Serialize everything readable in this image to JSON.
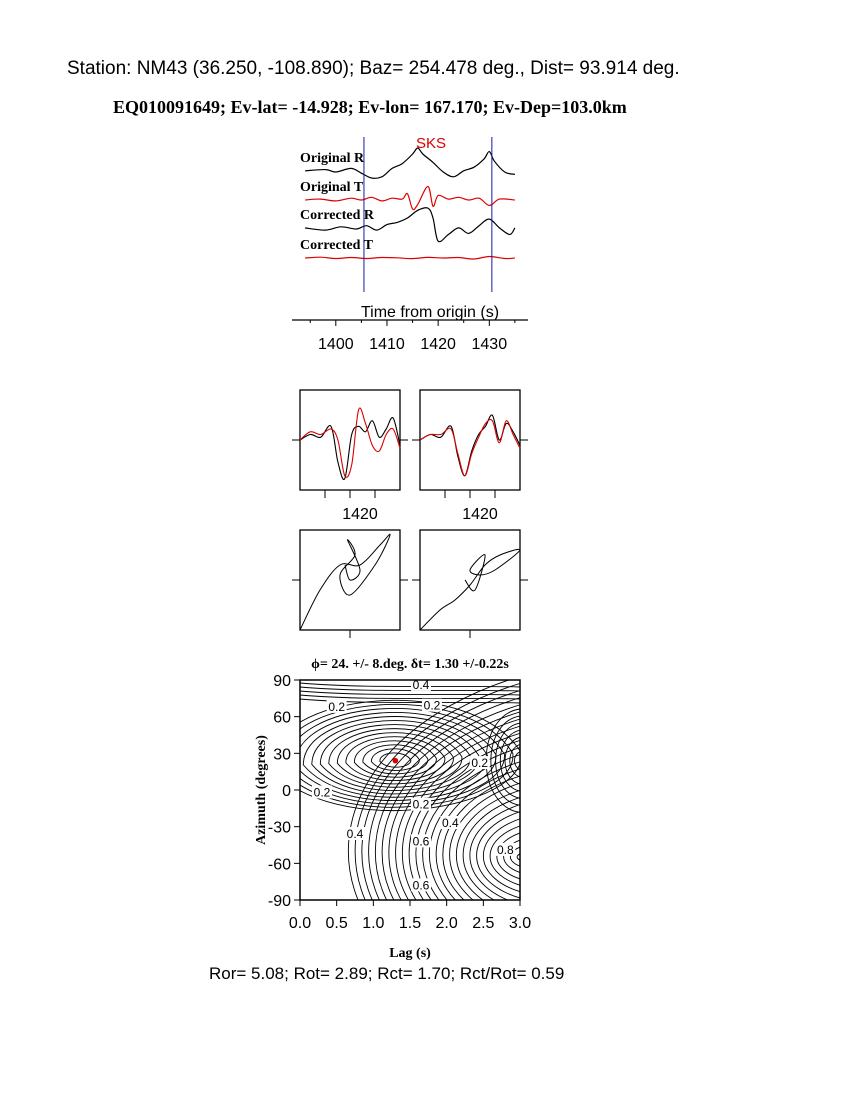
{
  "header": {
    "station_line": "Station: NM43 (36.250, -108.890); Baz=  254.478 deg., Dist=   93.914 deg.",
    "event_line": "EQ010091649; Ev-lat= -14.928; Ev-lon= 167.170; Ev-Dep=103.0km"
  },
  "footer": {
    "ratios_line": "Ror= 5.08; Rot= 2.89; Rct= 1.70; Rct/Rot= 0.59"
  },
  "colors": {
    "radial": "#000000",
    "transverse": "#dd0000",
    "window_marker": "#1a1aa0",
    "phase_label": "#dd0000",
    "best_fit_point": "#dd0000"
  },
  "chart_data": [
    {
      "type": "line",
      "panel": "waveforms",
      "phase_label": "SKS",
      "xlabel": "Time from origin (s)",
      "x_ticks": [
        "1400",
        "1410",
        "1420",
        "1430"
      ],
      "xlim": [
        1393,
        1436
      ],
      "window_markers": [
        1405.5,
        1430.5
      ],
      "series": [
        {
          "name": "Original R",
          "color": "radial",
          "x": [
            1394,
            1398,
            1400,
            1403,
            1405,
            1407,
            1409,
            1411,
            1413,
            1415,
            1416,
            1417,
            1419,
            1421,
            1423,
            1425,
            1427,
            1429,
            1430,
            1431,
            1433,
            1435
          ],
          "y": [
            0.05,
            0.1,
            0.0,
            0.15,
            -0.05,
            -0.25,
            -0.2,
            0.15,
            0.35,
            0.75,
            1.0,
            0.75,
            0.4,
            0.0,
            -0.2,
            0.05,
            0.2,
            0.55,
            0.85,
            0.45,
            0.0,
            -0.1
          ]
        },
        {
          "name": "Original T",
          "color": "transverse",
          "x": [
            1394,
            1397,
            1400,
            1403,
            1405,
            1407,
            1409,
            1411,
            1413,
            1414,
            1415,
            1416,
            1418,
            1419,
            1420,
            1422,
            1424,
            1426,
            1428,
            1430,
            1432,
            1435
          ],
          "y": [
            0.0,
            0.05,
            -0.05,
            0.1,
            0.0,
            0.15,
            -0.05,
            0.1,
            0.05,
            0.35,
            -0.5,
            -0.25,
            0.75,
            -0.35,
            0.25,
            0.05,
            0.15,
            0.0,
            0.1,
            -0.3,
            0.05,
            0.0
          ]
        },
        {
          "name": "Corrected R",
          "color": "radial",
          "x": [
            1394,
            1398,
            1401,
            1404,
            1406,
            1408,
            1410,
            1412,
            1414,
            1416,
            1418,
            1419,
            1420,
            1422,
            1424,
            1426,
            1428,
            1430,
            1432,
            1434,
            1435
          ],
          "y": [
            0.05,
            -0.05,
            0.1,
            0.0,
            0.15,
            -0.05,
            0.2,
            0.3,
            0.5,
            0.85,
            0.95,
            0.5,
            -0.55,
            -0.25,
            0.05,
            -0.2,
            0.15,
            0.45,
            0.05,
            -0.25,
            0.05
          ]
        },
        {
          "name": "Corrected T",
          "color": "transverse",
          "x": [
            1394,
            1397,
            1400,
            1403,
            1406,
            1409,
            1412,
            1415,
            1418,
            1421,
            1424,
            1427,
            1430,
            1433,
            1435
          ],
          "y": [
            0.0,
            0.08,
            -0.05,
            0.05,
            -0.05,
            0.05,
            0.02,
            -0.06,
            0.06,
            0.0,
            0.05,
            -0.1,
            0.15,
            -0.05,
            0.0
          ]
        }
      ]
    },
    {
      "type": "line",
      "panel": "particle-motion-waveforms-original",
      "x_ticks": [
        "1420"
      ],
      "series": [
        {
          "name": "",
          "color": "radial",
          "x": [
            1402,
            1405,
            1408,
            1411,
            1413,
            1415,
            1417,
            1419,
            1421,
            1423,
            1425,
            1427,
            1429,
            1431
          ],
          "y": [
            0.0,
            0.1,
            0.05,
            0.25,
            -0.4,
            -0.7,
            0.1,
            0.25,
            0.15,
            0.35,
            0.05,
            0.2,
            0.4,
            -0.1
          ]
        },
        {
          "name": "",
          "color": "transverse",
          "x": [
            1402,
            1405,
            1408,
            1411,
            1413,
            1415,
            1417,
            1419,
            1421,
            1423,
            1425,
            1427,
            1429,
            1431
          ],
          "y": [
            0.0,
            0.15,
            0.1,
            0.2,
            0.0,
            -0.65,
            -0.45,
            0.55,
            0.3,
            -0.1,
            -0.2,
            0.1,
            0.2,
            -0.15
          ]
        }
      ]
    },
    {
      "type": "line",
      "panel": "particle-motion-waveforms-corrected",
      "x_ticks": [
        "1420"
      ],
      "series": [
        {
          "name": "",
          "color": "radial",
          "x": [
            1402,
            1405,
            1408,
            1411,
            1413,
            1415,
            1417,
            1419,
            1421,
            1423,
            1425,
            1427,
            1429,
            1431
          ],
          "y": [
            0.0,
            0.1,
            0.05,
            0.25,
            -0.3,
            -0.65,
            -0.2,
            0.1,
            0.25,
            0.45,
            0.0,
            0.3,
            0.15,
            -0.1
          ]
        },
        {
          "name": "",
          "color": "transverse",
          "x": [
            1402,
            1405,
            1408,
            1411,
            1413,
            1415,
            1417,
            1419,
            1421,
            1423,
            1425,
            1427,
            1429,
            1431
          ],
          "y": [
            0.0,
            0.1,
            0.1,
            0.2,
            -0.25,
            -0.65,
            -0.25,
            0.05,
            0.3,
            0.35,
            -0.05,
            0.35,
            0.1,
            -0.15
          ]
        }
      ]
    },
    {
      "type": "scatter",
      "panel": "particle-motion-original",
      "series": [
        {
          "name": "",
          "x": [
            -1.0,
            -0.6,
            -0.2,
            0.2,
            0.6,
            0.8,
            0.5,
            0.0,
            -0.2,
            0.1,
            -0.05,
            0.2,
            0.0,
            -0.1
          ],
          "y": [
            -1.0,
            -0.2,
            0.3,
            0.3,
            0.7,
            0.9,
            0.3,
            -0.3,
            0.1,
            0.5,
            0.8,
            0.2,
            0.0,
            0.3
          ]
        }
      ]
    },
    {
      "type": "scatter",
      "panel": "particle-motion-corrected",
      "series": [
        {
          "name": "",
          "x": [
            -1.0,
            -0.6,
            -0.3,
            0.0,
            0.3,
            0.6,
            1.0,
            0.5,
            0.2,
            0.0,
            0.3,
            0.1,
            -0.1
          ],
          "y": [
            -1.0,
            -0.6,
            -0.4,
            -0.1,
            0.3,
            0.5,
            0.6,
            0.2,
            0.1,
            0.2,
            0.5,
            -0.2,
            0.0
          ]
        }
      ]
    },
    {
      "type": "heatmap",
      "panel": "misfit-grid",
      "title": "ϕ= 24. +/- 8.deg.  δt= 1.30 +/-0.22s",
      "xlabel": "Lag (s)",
      "ylabel": "Azimuth (degrees)",
      "x_ticks": [
        "0.0",
        "0.5",
        "1.0",
        "1.5",
        "2.0",
        "2.5",
        "3.0"
      ],
      "y_ticks": [
        "90",
        "60",
        "30",
        "0",
        "-30",
        "-60",
        "-90"
      ],
      "xlim": [
        0.0,
        3.0
      ],
      "ylim": [
        -90,
        90
      ],
      "best_fit": {
        "lag": 1.3,
        "azimuth": 24
      },
      "contour_labels": [
        {
          "text": "0.4",
          "lag": 1.65,
          "azimuth": 86
        },
        {
          "text": "0.2",
          "lag": 0.5,
          "azimuth": 68
        },
        {
          "text": "0.2",
          "lag": 1.8,
          "azimuth": 69
        },
        {
          "text": "0.2",
          "lag": 2.45,
          "azimuth": 22
        },
        {
          "text": "0.2",
          "lag": 0.3,
          "azimuth": -2
        },
        {
          "text": "0.2",
          "lag": 1.65,
          "azimuth": -12
        },
        {
          "text": "0.4",
          "lag": 0.75,
          "azimuth": -36
        },
        {
          "text": "0.4",
          "lag": 2.05,
          "azimuth": -27
        },
        {
          "text": "0.6",
          "lag": 1.65,
          "azimuth": -42
        },
        {
          "text": "0.8",
          "lag": 2.8,
          "azimuth": -49
        },
        {
          "text": "0.6",
          "lag": 1.65,
          "azimuth": -78
        }
      ]
    }
  ]
}
